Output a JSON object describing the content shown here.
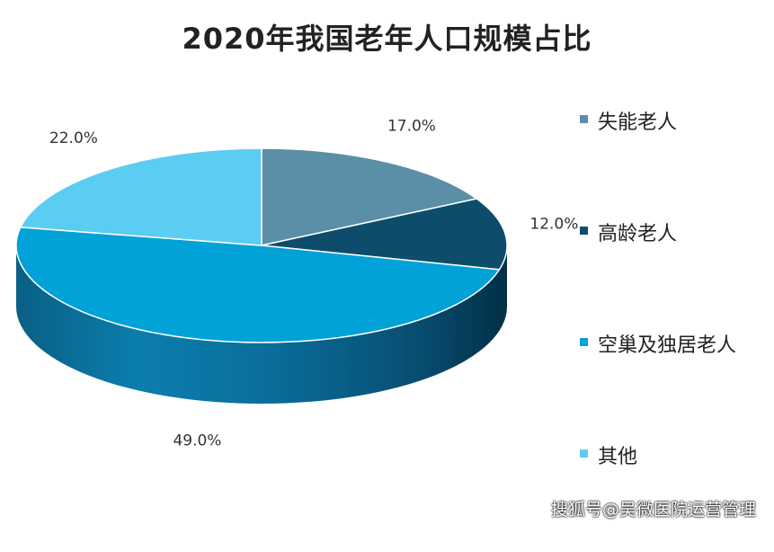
{
  "chart_data": {
    "type": "pie",
    "title": "2020年我国老年人口规模占比",
    "slices": [
      {
        "name": "失能老人",
        "value": 17.0,
        "label": "17.0%",
        "color": "#5b8fa8"
      },
      {
        "name": "高龄老人",
        "value": 12.0,
        "label": "12.0%",
        "color": "#0d4d6b"
      },
      {
        "name": "空巢及独居老人",
        "value": 49.0,
        "label": "49.0%",
        "color": "#00a2d8"
      },
      {
        "name": "其他",
        "value": 22.0,
        "label": "22.0%",
        "color": "#5ccdf2"
      }
    ],
    "legend_position": "right",
    "style": "3d"
  },
  "watermark": "搜狐号@吴微医院运营管理"
}
